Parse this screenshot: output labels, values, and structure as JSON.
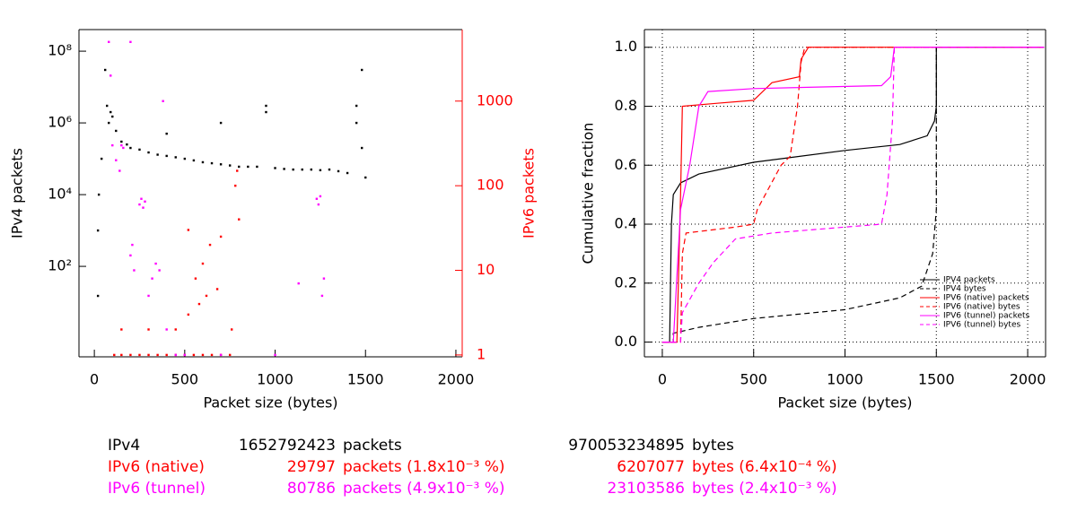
{
  "chart_data": [
    {
      "type": "scatter",
      "xlabel": "Packet size (bytes)",
      "ylabel": "IPv4 packets",
      "y2label": "IPv6 packets",
      "y2color": "#ff0000",
      "xlim": [
        -85,
        2035
      ],
      "xticks": [
        0,
        500,
        1000,
        1500,
        2000
      ],
      "ylim": [
        0.3,
        400000000
      ],
      "ylog": true,
      "yticks": [
        {
          "value": 100,
          "label": "10²"
        },
        {
          "value": 10000,
          "label": "10⁴"
        },
        {
          "value": 1000000,
          "label": "10⁶"
        },
        {
          "value": 100000000,
          "label": "10⁸"
        }
      ],
      "y2lim": [
        0.95,
        7000
      ],
      "y2log": true,
      "y2ticks": [
        1,
        10,
        100,
        1000
      ],
      "series": [
        {
          "name": "IPv4",
          "color": "#000000",
          "x": [
            20,
            20,
            25,
            40,
            60,
            70,
            80,
            90,
            100,
            120,
            150,
            180,
            200,
            250,
            300,
            350,
            400,
            450,
            500,
            550,
            600,
            650,
            700,
            750,
            800,
            850,
            900,
            950,
            1000,
            1050,
            1100,
            1150,
            1200,
            1250,
            1300,
            1350,
            1400,
            1450,
            1480,
            1500,
            950,
            1450,
            1480,
            400,
            700
          ],
          "values": [
            15,
            1000,
            10000,
            100000,
            30000000,
            3000000,
            1000000,
            2000000,
            1500000,
            600000,
            300000,
            250000,
            200000,
            180000,
            150000,
            130000,
            120000,
            110000,
            100000,
            90000,
            80000,
            75000,
            70000,
            65000,
            60000,
            60000,
            60000,
            2000000,
            55000,
            52000,
            50000,
            50000,
            50000,
            48000,
            50000,
            45000,
            40000,
            3000000,
            30000000,
            30000,
            3000000,
            1000000,
            200000,
            500000,
            1000000
          ]
        },
        {
          "name": "IPv6 (native)",
          "color": "#ff0000",
          "axis": "y2",
          "x": [
            110,
            150,
            200,
            250,
            300,
            350,
            400,
            450,
            500,
            550,
            600,
            650,
            700,
            750,
            150,
            300,
            450,
            520,
            580,
            620,
            680,
            560,
            600,
            640,
            700,
            780,
            790,
            800,
            760,
            520
          ],
          "values": [
            1,
            1,
            1,
            1,
            1,
            1,
            1,
            1,
            1,
            1,
            1,
            1,
            1,
            1,
            2,
            2,
            2,
            3,
            4,
            5,
            6,
            8,
            12,
            20,
            25,
            100,
            150,
            40,
            2,
            30
          ]
        },
        {
          "name": "IPv6 (tunnel)",
          "color": "#ff00ff",
          "axis": "y2",
          "x": [
            80,
            90,
            100,
            120,
            140,
            150,
            160,
            200,
            210,
            250,
            260,
            270,
            280,
            200,
            220,
            300,
            320,
            340,
            360,
            400,
            450,
            500,
            700,
            1000,
            1230,
            1240,
            1250,
            1260,
            1270,
            380,
            1130
          ],
          "values": [
            5000,
            2000,
            300,
            200,
            150,
            300,
            280,
            5000,
            20,
            60,
            70,
            55,
            65,
            15,
            10,
            5,
            8,
            12,
            10,
            2,
            1,
            1,
            1,
            1,
            70,
            60,
            75,
            5,
            8,
            1000,
            7
          ]
        }
      ]
    },
    {
      "type": "line",
      "xlabel": "Packet size (bytes)",
      "ylabel": "Cumulative fraction",
      "xlim": [
        -98,
        2098
      ],
      "xticks": [
        0,
        500,
        1000,
        1500,
        2000
      ],
      "ylim": [
        -0.05,
        1.06
      ],
      "yticks": [
        {
          "value": 0,
          "label": "0.0"
        },
        {
          "value": 0.2,
          "label": "0.2"
        },
        {
          "value": 0.4,
          "label": "0.4"
        },
        {
          "value": 0.6,
          "label": "0.6"
        },
        {
          "value": 0.8,
          "label": "0.8"
        },
        {
          "value": 1,
          "label": "1.0"
        }
      ],
      "grid": true,
      "legend": "lower right",
      "series": [
        {
          "name": "IPV4 packets",
          "color": "#000000",
          "dash": false,
          "x": [
            0,
            40,
            45,
            50,
            60,
            100,
            200,
            500,
            1000,
            1300,
            1450,
            1490,
            1500,
            1500,
            2090
          ],
          "values": [
            0,
            0,
            0.2,
            0.4,
            0.5,
            0.54,
            0.57,
            0.61,
            0.65,
            0.67,
            0.7,
            0.75,
            0.8,
            1,
            1
          ]
        },
        {
          "name": "IPV4 bytes",
          "color": "#000000",
          "dash": true,
          "x": [
            0,
            60,
            60,
            200,
            500,
            1000,
            1300,
            1420,
            1480,
            1500,
            1500,
            2090
          ],
          "values": [
            0,
            0,
            0.03,
            0.05,
            0.08,
            0.11,
            0.15,
            0.19,
            0.3,
            0.45,
            1,
            1
          ]
        },
        {
          "name": "IPV6 (native) packets",
          "color": "#ff0000",
          "dash": false,
          "x": [
            0,
            80,
            100,
            110,
            300,
            500,
            600,
            750,
            760,
            780,
            800,
            2090
          ],
          "values": [
            0,
            0,
            0.5,
            0.8,
            0.81,
            0.82,
            0.88,
            0.9,
            0.96,
            0.98,
            1,
            1
          ]
        },
        {
          "name": "IPV6 (native) bytes",
          "color": "#ff0000",
          "dash": true,
          "x": [
            0,
            100,
            110,
            130,
            400,
            500,
            520,
            650,
            700,
            740,
            760,
            780,
            2090
          ],
          "values": [
            0,
            0,
            0.3,
            0.37,
            0.39,
            0.4,
            0.45,
            0.6,
            0.63,
            0.8,
            0.95,
            1,
            1
          ]
        },
        {
          "name": "IPV6 (tunnel) packets",
          "color": "#ff00ff",
          "dash": false,
          "x": [
            0,
            60,
            100,
            150,
            200,
            250,
            500,
            1200,
            1250,
            1270,
            2090
          ],
          "values": [
            0,
            0,
            0.45,
            0.6,
            0.8,
            0.85,
            0.86,
            0.87,
            0.9,
            1,
            1
          ]
        },
        {
          "name": "IPV6 (tunnel) bytes",
          "color": "#ff00ff",
          "dash": true,
          "x": [
            0,
            100,
            110,
            200,
            280,
            400,
            600,
            800,
            1200,
            1230,
            1260,
            1270,
            2090
          ],
          "values": [
            0,
            0,
            0.1,
            0.2,
            0.27,
            0.35,
            0.37,
            0.38,
            0.4,
            0.5,
            0.75,
            1,
            1
          ]
        }
      ]
    }
  ],
  "summary": {
    "rows": [
      {
        "name": "IPv4",
        "color": "#000000",
        "packets": 1652792423,
        "packets_unit": "packets",
        "bytes": 970053234895,
        "bytes_unit": "bytes"
      },
      {
        "name": "IPv6 (native)",
        "color": "#ff0000",
        "packets": 29797,
        "packets_unit": "packets (1.8x10⁻³ %)",
        "bytes": 6207077,
        "bytes_unit": "bytes (6.4x10⁻⁴ %)"
      },
      {
        "name": "IPv6 (tunnel)",
        "color": "#ff00ff",
        "packets": 80786,
        "packets_unit": "packets (4.9x10⁻³ %)",
        "bytes": 23103586,
        "bytes_unit": "bytes (2.4x10⁻³ %)"
      }
    ]
  }
}
